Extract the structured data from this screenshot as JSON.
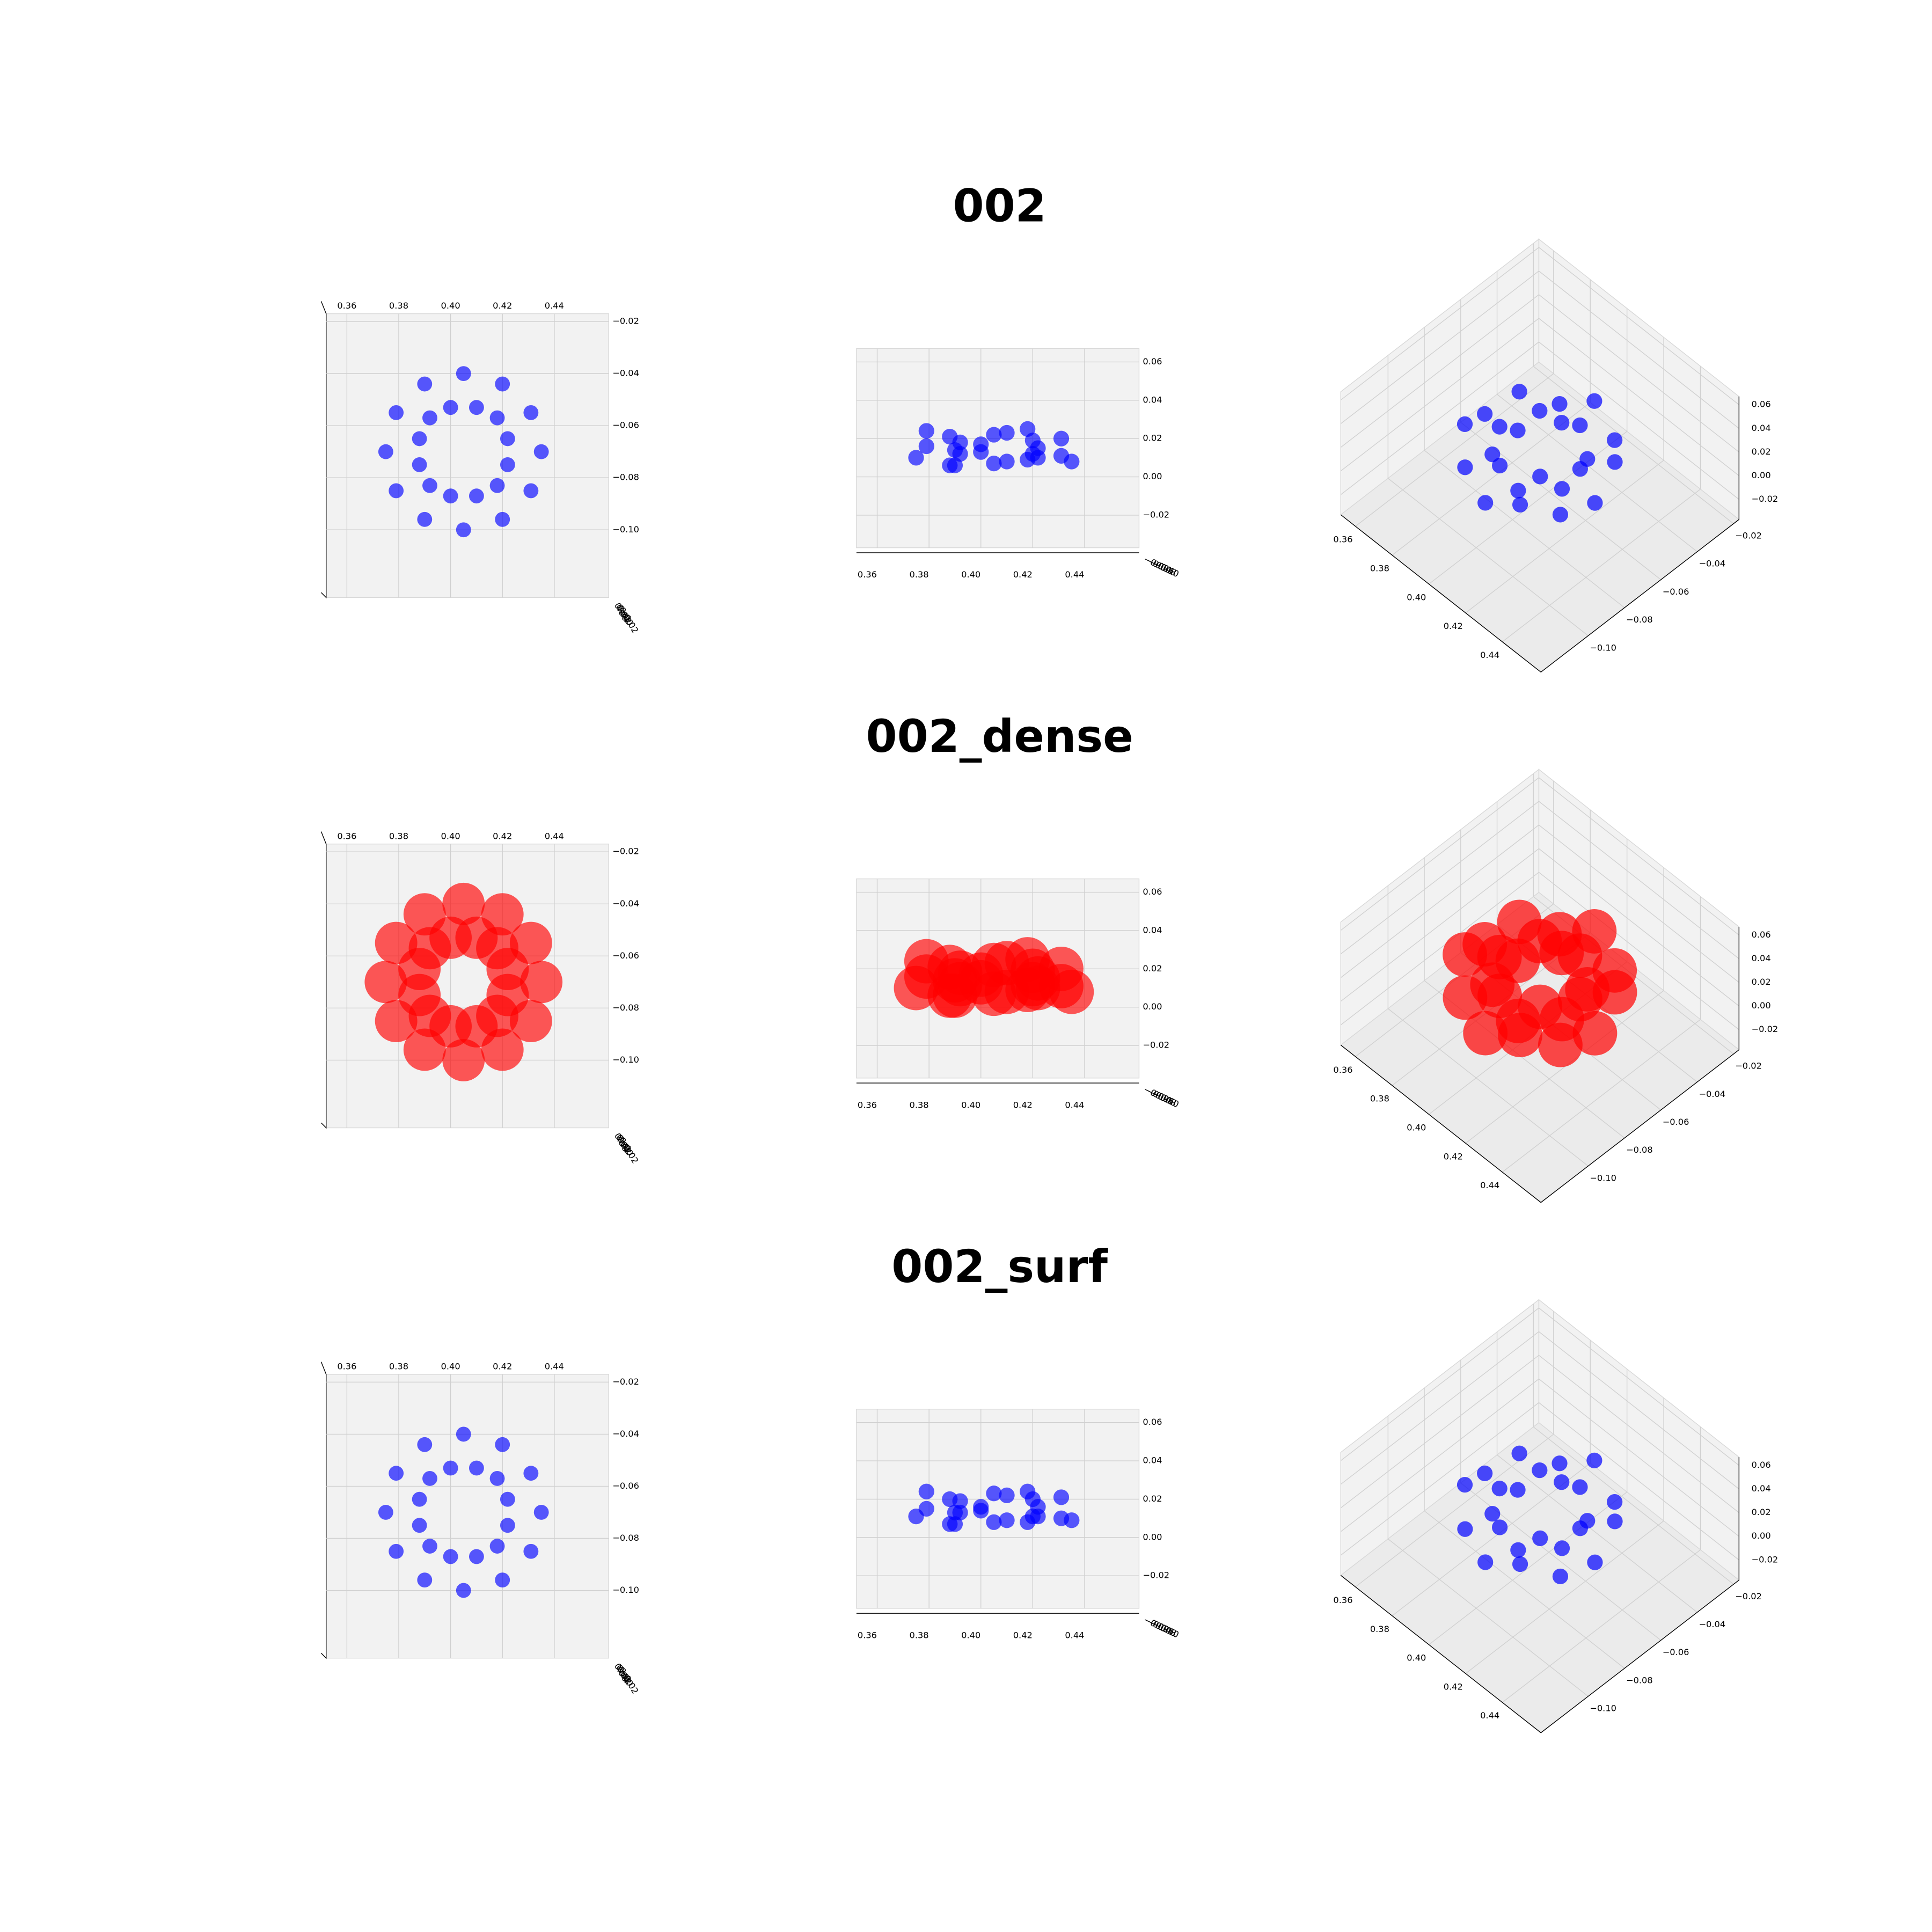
{
  "chart_data": [
    {
      "type": "scatter3d",
      "title": "002",
      "color": "#0000ff",
      "marker_size": 6,
      "x": [
        0.435,
        0.431,
        0.42,
        0.405,
        0.39,
        0.379,
        0.375,
        0.379,
        0.39,
        0.405,
        0.42,
        0.431,
        0.422,
        0.418,
        0.41,
        0.4,
        0.392,
        0.388,
        0.388,
        0.392,
        0.4,
        0.41,
        0.418,
        0.422
      ],
      "y": [
        -0.07,
        -0.055,
        -0.044,
        -0.04,
        -0.044,
        -0.055,
        -0.07,
        -0.085,
        -0.096,
        -0.1,
        -0.096,
        -0.085,
        -0.065,
        -0.057,
        -0.053,
        -0.053,
        -0.057,
        -0.065,
        -0.075,
        -0.083,
        -0.087,
        -0.087,
        -0.083,
        -0.075
      ],
      "z": [
        0.008,
        0.02,
        0.012,
        0.022,
        0.006,
        0.016,
        0.01,
        0.024,
        0.014,
        0.007,
        0.019,
        0.011,
        0.015,
        0.009,
        0.023,
        0.013,
        0.018,
        0.006,
        0.021,
        0.012,
        0.017,
        0.008,
        0.025,
        0.01
      ],
      "xlim": [
        0.352,
        0.461
      ],
      "ylim": [
        -0.126,
        -0.017
      ],
      "zlim": [
        -0.037,
        0.067
      ],
      "xticks": [
        0.36,
        0.38,
        {
          "value": 0.4,
          "label": "0.40"
        },
        0.42,
        0.44
      ],
      "yticks": [
        {
          "value": -0.02,
          "label": "−0.02"
        },
        {
          "value": -0.04,
          "label": "−0.04"
        },
        {
          "value": -0.06,
          "label": "−0.06"
        },
        {
          "value": -0.08,
          "label": "−0.08"
        },
        {
          "value": -0.1,
          "label": "−0.10"
        }
      ],
      "zticks": [
        0.06,
        0.04,
        0.02,
        {
          "value": 0.0,
          "label": "0.00"
        },
        {
          "value": -0.02,
          "label": "−0.02"
        }
      ],
      "grid": true
    },
    {
      "type": "scatter3d",
      "title": "002_dense",
      "color": "#ff0000",
      "marker_size": 17,
      "x": [
        0.435,
        0.431,
        0.42,
        0.405,
        0.39,
        0.379,
        0.375,
        0.379,
        0.39,
        0.405,
        0.42,
        0.431,
        0.422,
        0.418,
        0.41,
        0.4,
        0.392,
        0.388,
        0.388,
        0.392,
        0.4,
        0.41,
        0.418,
        0.422
      ],
      "y": [
        -0.07,
        -0.055,
        -0.044,
        -0.04,
        -0.044,
        -0.055,
        -0.07,
        -0.085,
        -0.096,
        -0.1,
        -0.096,
        -0.085,
        -0.065,
        -0.057,
        -0.053,
        -0.053,
        -0.057,
        -0.065,
        -0.075,
        -0.083,
        -0.087,
        -0.087,
        -0.083,
        -0.075
      ],
      "z": [
        0.008,
        0.02,
        0.012,
        0.022,
        0.006,
        0.016,
        0.01,
        0.024,
        0.014,
        0.007,
        0.019,
        0.011,
        0.015,
        0.009,
        0.023,
        0.013,
        0.018,
        0.006,
        0.021,
        0.012,
        0.017,
        0.008,
        0.025,
        0.01
      ],
      "xlim": [
        0.352,
        0.461
      ],
      "ylim": [
        -0.126,
        -0.017
      ],
      "zlim": [
        -0.037,
        0.067
      ],
      "xticks": [
        0.36,
        0.38,
        {
          "value": 0.4,
          "label": "0.40"
        },
        0.42,
        0.44
      ],
      "yticks": [
        {
          "value": -0.02,
          "label": "−0.02"
        },
        {
          "value": -0.04,
          "label": "−0.04"
        },
        {
          "value": -0.06,
          "label": "−0.06"
        },
        {
          "value": -0.08,
          "label": "−0.08"
        },
        {
          "value": -0.1,
          "label": "−0.10"
        }
      ],
      "zticks": [
        0.06,
        0.04,
        0.02,
        {
          "value": 0.0,
          "label": "0.00"
        },
        {
          "value": -0.02,
          "label": "−0.02"
        }
      ],
      "grid": true
    },
    {
      "type": "scatter3d",
      "title": "002_surf",
      "color": "#0000ff",
      "marker_size": 6,
      "x": [
        0.435,
        0.431,
        0.42,
        0.405,
        0.39,
        0.379,
        0.375,
        0.379,
        0.39,
        0.405,
        0.42,
        0.431,
        0.422,
        0.418,
        0.41,
        0.4,
        0.392,
        0.388,
        0.388,
        0.392,
        0.4,
        0.41,
        0.418,
        0.422
      ],
      "y": [
        -0.07,
        -0.055,
        -0.044,
        -0.04,
        -0.044,
        -0.055,
        -0.07,
        -0.085,
        -0.096,
        -0.1,
        -0.096,
        -0.085,
        -0.065,
        -0.057,
        -0.053,
        -0.053,
        -0.057,
        -0.065,
        -0.075,
        -0.083,
        -0.087,
        -0.087,
        -0.083,
        -0.075
      ],
      "z": [
        0.009,
        0.021,
        0.011,
        0.023,
        0.007,
        0.015,
        0.011,
        0.024,
        0.013,
        0.008,
        0.02,
        0.01,
        0.016,
        0.008,
        0.022,
        0.014,
        0.019,
        0.007,
        0.02,
        0.013,
        0.016,
        0.009,
        0.024,
        0.011
      ],
      "xlim": [
        0.352,
        0.461
      ],
      "ylim": [
        -0.126,
        -0.017
      ],
      "zlim": [
        -0.037,
        0.067
      ],
      "xticks": [
        0.36,
        0.38,
        {
          "value": 0.4,
          "label": "0.40"
        },
        0.42,
        0.44
      ],
      "yticks": [
        {
          "value": -0.02,
          "label": "−0.02"
        },
        {
          "value": -0.04,
          "label": "−0.04"
        },
        {
          "value": -0.06,
          "label": "−0.06"
        },
        {
          "value": -0.08,
          "label": "−0.08"
        },
        {
          "value": -0.1,
          "label": "−0.10"
        }
      ],
      "zticks": [
        0.06,
        0.04,
        0.02,
        {
          "value": 0.0,
          "label": "0.00"
        },
        {
          "value": -0.02,
          "label": "−0.02"
        }
      ],
      "grid": true
    }
  ]
}
